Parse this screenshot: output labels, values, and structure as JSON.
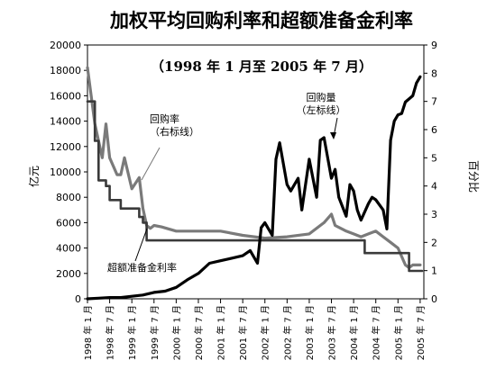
{
  "chart_data": {
    "type": "line",
    "title": "加权平均回购利率和超额准备金利率",
    "subtitle": "（1998 年 1 月至 2005 年 7 月）",
    "ylabel_left": "亿元",
    "ylabel_right": "百分比",
    "ylim_left": [
      0,
      20000
    ],
    "ylim_right": [
      0,
      9
    ],
    "y_ticks_left": [
      "0",
      "2000",
      "4000",
      "6000",
      "8000",
      "10000",
      "12000",
      "14000",
      "16000",
      "18000",
      "20000"
    ],
    "y_ticks_right": [
      "0",
      "1",
      "2",
      "3",
      "4",
      "5",
      "6",
      "7",
      "8",
      "9"
    ],
    "x_tick_labels": [
      "1998 年 1 月",
      "1998 年 7 月",
      "1999 年 1 月",
      "1999 年 7 月",
      "2000 年 1 月",
      "2000 年 7 月",
      "2001 年 1 月",
      "2001 年 7 月",
      "2002 年 1 月",
      "2002 年 7 月",
      "2003 年 1 月",
      "2003 年 7 月",
      "2004 年 1 月",
      "2004 年 7 月",
      "2005 年 1 月",
      "2005 年 7 月"
    ],
    "annotations": {
      "repo_volume": "回购量\n（左标线）",
      "repo_rate": "回购率\n（右标线）",
      "excess_reserve_rate": "超额准备金利率"
    },
    "x_start": "1998-01",
    "x_months": 91,
    "grid": false,
    "series": [
      {
        "name": "回购量",
        "axis": "left",
        "color": "#000000",
        "x_month_index": [
          0,
          3,
          6,
          9,
          12,
          15,
          18,
          21,
          24,
          27,
          30,
          33,
          36,
          39,
          42,
          44,
          46,
          47,
          48,
          50,
          51,
          52,
          54,
          55,
          57,
          58,
          60,
          61,
          62,
          63,
          64,
          66,
          67,
          68,
          70,
          71,
          72,
          73,
          74,
          76,
          77,
          78,
          80,
          81,
          82,
          83,
          84,
          85,
          86,
          88,
          89,
          90
        ],
        "values": [
          0,
          50,
          100,
          100,
          200,
          300,
          500,
          600,
          900,
          1500,
          2000,
          2800,
          3000,
          3200,
          3400,
          3800,
          2800,
          5600,
          6000,
          5000,
          11000,
          12300,
          9000,
          8500,
          9500,
          7000,
          11000,
          9500,
          8000,
          12500,
          12700,
          9500,
          10200,
          8000,
          6500,
          9000,
          8500,
          7000,
          6200,
          7500,
          8000,
          7800,
          7000,
          5500,
          12500,
          14000,
          14500,
          14600,
          15500,
          16000,
          17000,
          17500
        ]
      },
      {
        "name": "回购率",
        "axis": "right",
        "color": "#7a7a7a",
        "x_month_index": [
          0,
          2,
          4,
          5,
          6,
          8,
          9,
          10,
          12,
          14,
          15,
          16,
          17,
          18,
          20,
          24,
          30,
          36,
          42,
          48,
          54,
          60,
          63,
          64,
          66,
          67,
          70,
          72,
          74,
          76,
          78,
          80,
          82,
          84,
          86,
          87,
          88,
          90
        ],
        "values": [
          8.2,
          6.2,
          5.0,
          6.2,
          5.0,
          4.4,
          4.4,
          5.0,
          3.9,
          4.3,
          3.2,
          2.6,
          2.5,
          2.6,
          2.55,
          2.4,
          2.4,
          2.4,
          2.25,
          2.15,
          2.2,
          2.3,
          2.6,
          2.7,
          3.0,
          2.6,
          2.4,
          2.3,
          2.2,
          2.3,
          2.4,
          2.2,
          2.0,
          1.8,
          1.2,
          1.1,
          1.2,
          1.2
        ]
      },
      {
        "name": "超额准备金利率",
        "axis": "right",
        "color": "#3a3a3a",
        "x_month_index": [
          0,
          2,
          3,
          5,
          6,
          8,
          9,
          12,
          14,
          15,
          16,
          18,
          75,
          87,
          90
        ],
        "values": [
          7.0,
          5.6,
          4.2,
          4.0,
          3.5,
          3.5,
          3.2,
          3.2,
          2.9,
          2.7,
          2.07,
          2.07,
          1.62,
          0.99,
          0.99
        ]
      }
    ]
  }
}
